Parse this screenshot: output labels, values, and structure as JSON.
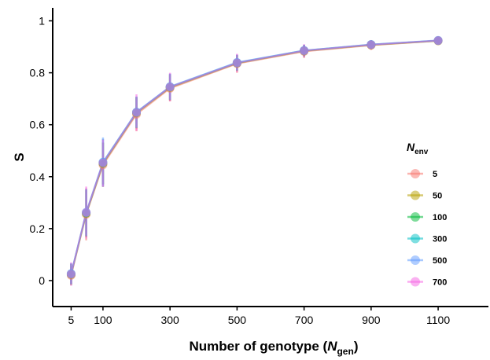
{
  "chart_data": {
    "type": "line",
    "xlabel": {
      "main": "Number of genotype (",
      "var": "N",
      "sub": "gen",
      "close": ")"
    },
    "ylabel": "S",
    "x": [
      5,
      50,
      100,
      200,
      300,
      500,
      700,
      900,
      1100
    ],
    "xticks": [
      "5",
      "100",
      "300",
      "500",
      "700",
      "900",
      "1100"
    ],
    "xtick_values": [
      5,
      100,
      300,
      500,
      700,
      900,
      1100
    ],
    "xlim": [
      -50,
      1250
    ],
    "yticks": [
      "0",
      "0.2",
      "0.4",
      "0.6",
      "0.8",
      "1"
    ],
    "ytick_values": [
      0,
      0.2,
      0.4,
      0.6,
      0.8,
      1.0
    ],
    "ylim": [
      -0.1,
      1.05
    ],
    "legend": {
      "title_var": "N",
      "title_sub": "env",
      "placement": "right"
    },
    "series": [
      {
        "name": "5",
        "color": "#F8766D",
        "values": [
          0.02,
          0.255,
          0.445,
          0.64,
          0.74,
          0.835,
          0.882,
          0.906,
          0.923
        ],
        "err": [
          0.035,
          0.1,
          0.085,
          0.065,
          0.05,
          0.035,
          0.025,
          0.018,
          0.012
        ]
      },
      {
        "name": "50",
        "color": "#B79F00",
        "values": [
          0.023,
          0.258,
          0.45,
          0.645,
          0.743,
          0.837,
          0.884,
          0.907,
          0.923
        ],
        "err": [
          0.04,
          0.09,
          0.08,
          0.06,
          0.05,
          0.03,
          0.022,
          0.016,
          0.01
        ]
      },
      {
        "name": "100",
        "color": "#00BA38",
        "values": [
          0.025,
          0.26,
          0.452,
          0.647,
          0.745,
          0.838,
          0.885,
          0.908,
          0.924
        ],
        "err": [
          0.04,
          0.09,
          0.08,
          0.06,
          0.05,
          0.03,
          0.022,
          0.016,
          0.01
        ]
      },
      {
        "name": "300",
        "color": "#00BFC4",
        "values": [
          0.026,
          0.262,
          0.455,
          0.648,
          0.746,
          0.839,
          0.886,
          0.909,
          0.924
        ],
        "err": [
          0.04,
          0.09,
          0.09,
          0.06,
          0.05,
          0.03,
          0.022,
          0.016,
          0.01
        ]
      },
      {
        "name": "500",
        "color": "#619CFF",
        "values": [
          0.027,
          0.263,
          0.456,
          0.649,
          0.747,
          0.84,
          0.886,
          0.909,
          0.925
        ],
        "err": [
          0.04,
          0.09,
          0.095,
          0.06,
          0.05,
          0.03,
          0.022,
          0.016,
          0.01
        ]
      },
      {
        "name": "700",
        "color": "#F564E3",
        "values": [
          0.025,
          0.262,
          0.453,
          0.647,
          0.745,
          0.838,
          0.885,
          0.908,
          0.924
        ],
        "err": [
          0.045,
          0.1,
          0.09,
          0.07,
          0.055,
          0.035,
          0.025,
          0.018,
          0.012
        ]
      }
    ]
  }
}
